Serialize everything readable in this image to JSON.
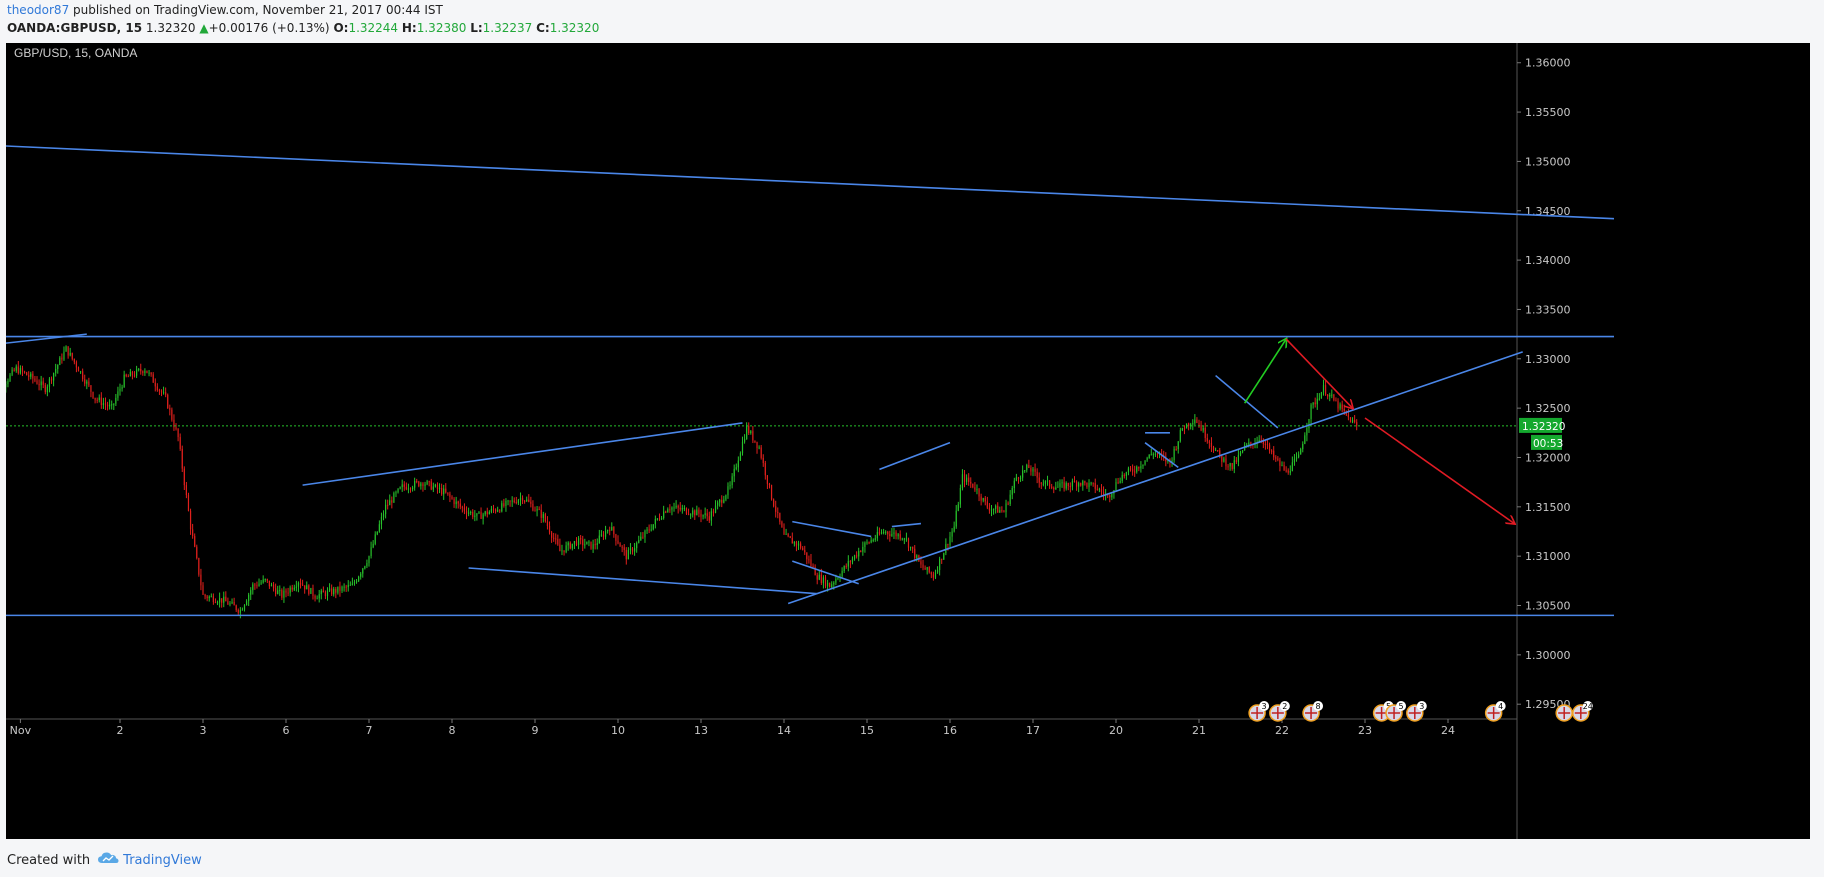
{
  "header": {
    "author": "theodor87",
    "published_text": "published on TradingView.com, November 21, 2017 00:44 IST",
    "symbol": "OANDA:GBPUSD, 15",
    "last": "1.32320",
    "arrow": "▲",
    "change": "+0.00176 (+0.13%)",
    "o_label": "O:",
    "o_value": "1.32244",
    "h_label": "H:",
    "h_value": "1.32380",
    "l_label": "L:",
    "l_value": "1.32237",
    "c_label": "C:",
    "c_value": "1.32320"
  },
  "footer": {
    "created_with": "Created with",
    "brand": "TradingView"
  },
  "chart_data": {
    "type": "candlestick",
    "title": "GBP/USD, 15, OANDA",
    "ylim": [
      1.2935,
      1.362
    ],
    "y_ticks": [
      "1.36000",
      "1.35500",
      "1.35000",
      "1.34500",
      "1.34000",
      "1.33500",
      "1.33000",
      "1.32500",
      "1.32000",
      "1.31500",
      "1.31000",
      "1.30500",
      "1.30000",
      "1.29500"
    ],
    "x_ticks": [
      {
        "label": "Nov",
        "day": 0.8
      },
      {
        "label": "2",
        "day": 2
      },
      {
        "label": "3",
        "day": 3
      },
      {
        "label": "6",
        "day": 4
      },
      {
        "label": "7",
        "day": 5
      },
      {
        "label": "8",
        "day": 6
      },
      {
        "label": "9",
        "day": 7
      },
      {
        "label": "10",
        "day": 8
      },
      {
        "label": "13",
        "day": 9
      },
      {
        "label": "14",
        "day": 10
      },
      {
        "label": "15",
        "day": 11
      },
      {
        "label": "16",
        "day": 12
      },
      {
        "label": "17",
        "day": 13
      },
      {
        "label": "20",
        "day": 14
      },
      {
        "label": "21",
        "day": 15
      },
      {
        "label": "22",
        "day": 16
      },
      {
        "label": "23",
        "day": 17
      },
      {
        "label": "24",
        "day": 18
      }
    ],
    "current_price": {
      "label": "1.32320",
      "value": 1.3232
    },
    "countdown": {
      "label": "00:53"
    },
    "price_path": [
      [
        0.4,
        1.32
      ],
      [
        0.55,
        1.327
      ],
      [
        0.75,
        1.329
      ],
      [
        0.95,
        1.328
      ],
      [
        1.1,
        1.327
      ],
      [
        1.35,
        1.331
      ],
      [
        1.5,
        1.329
      ],
      [
        1.7,
        1.326
      ],
      [
        1.9,
        1.325
      ],
      [
        2.05,
        1.328
      ],
      [
        2.3,
        1.329
      ],
      [
        2.55,
        1.326
      ],
      [
        2.7,
        1.322
      ],
      [
        2.85,
        1.313
      ],
      [
        3.0,
        1.306
      ],
      [
        3.25,
        1.3055
      ],
      [
        3.45,
        1.3045
      ],
      [
        3.6,
        1.307
      ],
      [
        3.75,
        1.3075
      ],
      [
        3.95,
        1.306
      ],
      [
        4.15,
        1.3075
      ],
      [
        4.35,
        1.306
      ],
      [
        4.6,
        1.3065
      ],
      [
        4.8,
        1.307
      ],
      [
        5.0,
        1.31
      ],
      [
        5.2,
        1.315
      ],
      [
        5.4,
        1.317
      ],
      [
        5.65,
        1.3175
      ],
      [
        5.9,
        1.3165
      ],
      [
        6.1,
        1.315
      ],
      [
        6.3,
        1.314
      ],
      [
        6.6,
        1.315
      ],
      [
        6.85,
        1.316
      ],
      [
        7.1,
        1.314
      ],
      [
        7.3,
        1.3105
      ],
      [
        7.5,
        1.3115
      ],
      [
        7.7,
        1.311
      ],
      [
        7.9,
        1.313
      ],
      [
        8.1,
        1.31
      ],
      [
        8.35,
        1.3125
      ],
      [
        8.6,
        1.315
      ],
      [
        8.9,
        1.3145
      ],
      [
        9.1,
        1.314
      ],
      [
        9.35,
        1.317
      ],
      [
        9.55,
        1.323
      ],
      [
        9.7,
        1.321
      ],
      [
        9.85,
        1.316
      ],
      [
        10.0,
        1.312
      ],
      [
        10.2,
        1.311
      ],
      [
        10.4,
        1.308
      ],
      [
        10.55,
        1.307
      ],
      [
        10.75,
        1.309
      ],
      [
        10.95,
        1.311
      ],
      [
        11.2,
        1.3125
      ],
      [
        11.45,
        1.312
      ],
      [
        11.65,
        1.309
      ],
      [
        11.8,
        1.308
      ],
      [
        11.95,
        1.311
      ],
      [
        12.05,
        1.313
      ],
      [
        12.15,
        1.318
      ],
      [
        12.3,
        1.317
      ],
      [
        12.45,
        1.315
      ],
      [
        12.65,
        1.3145
      ],
      [
        12.8,
        1.318
      ],
      [
        12.95,
        1.319
      ],
      [
        13.1,
        1.3175
      ],
      [
        13.3,
        1.317
      ],
      [
        13.55,
        1.3175
      ],
      [
        13.75,
        1.317
      ],
      [
        13.9,
        1.316
      ],
      [
        14.05,
        1.318
      ],
      [
        14.25,
        1.319
      ],
      [
        14.45,
        1.3205
      ],
      [
        14.65,
        1.3195
      ],
      [
        14.8,
        1.323
      ],
      [
        14.95,
        1.324
      ],
      [
        15.1,
        1.322
      ],
      [
        15.25,
        1.32
      ],
      [
        15.4,
        1.319
      ],
      [
        15.55,
        1.321
      ],
      [
        15.75,
        1.322
      ],
      [
        15.9,
        1.32
      ],
      [
        16.05,
        1.3185
      ],
      [
        16.2,
        1.32
      ],
      [
        16.35,
        1.325
      ],
      [
        16.5,
        1.327
      ],
      [
        16.65,
        1.3255
      ],
      [
        16.8,
        1.324
      ],
      [
        16.9,
        1.3232
      ]
    ],
    "trend_lines": [
      {
        "color": "#4a86e8",
        "from": [
          0.0,
          1.331
        ],
        "to": [
          1.6,
          1.3325
        ]
      },
      {
        "color": "#4a86e8",
        "from": [
          0.0,
          1.3518
        ],
        "to": [
          20.0,
          1.3442
        ]
      },
      {
        "color": "#4a86e8",
        "from": [
          0.0,
          1.33225
        ],
        "to": [
          20.0,
          1.33225
        ]
      },
      {
        "color": "#4a86e8",
        "from": [
          0.0,
          1.304
        ],
        "to": [
          20.0,
          1.304
        ]
      },
      {
        "color": "#4a86e8",
        "from": [
          4.2,
          1.3172
        ],
        "to": [
          9.5,
          1.3235
        ]
      },
      {
        "color": "#4a86e8",
        "from": [
          6.2,
          1.3088
        ],
        "to": [
          10.4,
          1.3062
        ]
      },
      {
        "color": "#4a86e8",
        "from": [
          10.1,
          1.3135
        ],
        "to": [
          11.05,
          1.312
        ]
      },
      {
        "color": "#4a86e8",
        "from": [
          10.1,
          1.3095
        ],
        "to": [
          10.9,
          1.3072
        ]
      },
      {
        "color": "#4a86e8",
        "from": [
          11.15,
          1.3188
        ],
        "to": [
          12.0,
          1.3215
        ]
      },
      {
        "color": "#4a86e8",
        "from": [
          11.3,
          1.313
        ],
        "to": [
          11.65,
          1.3133
        ]
      },
      {
        "color": "#4a86e8",
        "from": [
          10.05,
          1.3052
        ],
        "to": [
          18.9,
          1.3307
        ]
      },
      {
        "color": "#4a86e8",
        "from": [
          14.35,
          1.3225
        ],
        "to": [
          14.65,
          1.3225
        ]
      },
      {
        "color": "#4a86e8",
        "from": [
          14.35,
          1.3215
        ],
        "to": [
          14.75,
          1.319
        ]
      },
      {
        "color": "#4a86e8",
        "from": [
          15.2,
          1.3283
        ],
        "to": [
          15.95,
          1.323
        ]
      },
      {
        "color": "#22cc22",
        "from": [
          15.55,
          1.3255
        ],
        "to": [
          16.05,
          1.332
        ],
        "arrow": true
      },
      {
        "color": "#e01b24",
        "from": [
          16.05,
          1.332
        ],
        "to": [
          16.85,
          1.325
        ],
        "arrow": true
      },
      {
        "color": "#e01b24",
        "from": [
          17.0,
          1.324
        ],
        "to": [
          18.8,
          1.3133
        ],
        "arrow": true
      }
    ],
    "event_markers": [
      {
        "day": 15.7,
        "number": "3"
      },
      {
        "day": 15.95,
        "number": "2"
      },
      {
        "day": 16.35,
        "number": "8"
      },
      {
        "day": 17.2,
        "number": "5"
      },
      {
        "day": 17.35,
        "number": "5"
      },
      {
        "day": 17.6,
        "number": "3"
      },
      {
        "day": 18.55,
        "number": "4"
      },
      {
        "day": 19.4,
        "number": ""
      },
      {
        "day": 19.6,
        "number": "24"
      }
    ],
    "colors": {
      "background": "#000000",
      "up_candle": "#27c12b",
      "down_candle": "#e0201c",
      "trend_line": "#4a86e8",
      "price_label_bg": "#14a82e",
      "axis_text": "#c8c8c8"
    }
  }
}
